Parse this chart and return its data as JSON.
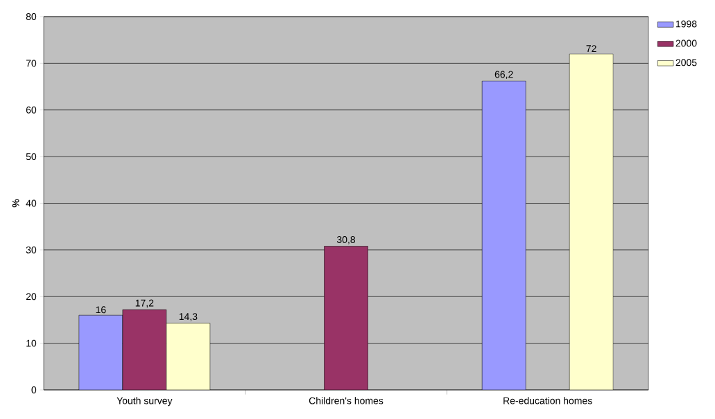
{
  "chart_data": {
    "type": "bar",
    "ylabel": "%",
    "categories": [
      "Youth survey",
      "Children's homes",
      "Re-education homes"
    ],
    "series": [
      {
        "name": "1998",
        "color": "#9999ff",
        "values": [
          16,
          null,
          66.2
        ],
        "value_labels": [
          "16",
          null,
          "66,2"
        ]
      },
      {
        "name": "2000",
        "color": "#993366",
        "values": [
          17.2,
          30.8,
          null
        ],
        "value_labels": [
          "17,2",
          "30,8",
          null
        ]
      },
      {
        "name": "2005",
        "color": "#ffffcc",
        "values": [
          14.3,
          null,
          72
        ],
        "value_labels": [
          "14,3",
          null,
          "72"
        ]
      }
    ],
    "ylim": [
      0,
      80
    ],
    "yticks": [
      0,
      10,
      20,
      30,
      40,
      50,
      60,
      70,
      80
    ],
    "grid": "y",
    "legend": "top right"
  }
}
